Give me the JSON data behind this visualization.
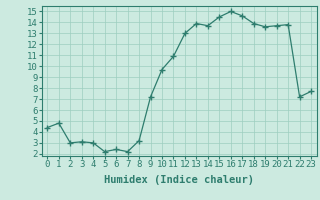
{
  "x": [
    0,
    1,
    2,
    3,
    4,
    5,
    6,
    7,
    8,
    9,
    10,
    11,
    12,
    13,
    14,
    15,
    16,
    17,
    18,
    19,
    20,
    21,
    22,
    23
  ],
  "y": [
    4.4,
    4.8,
    3.0,
    3.1,
    3.0,
    2.2,
    2.4,
    2.2,
    3.2,
    7.2,
    9.7,
    10.9,
    13.0,
    13.9,
    13.7,
    14.5,
    15.0,
    14.6,
    13.9,
    13.6,
    13.7,
    13.8,
    7.2,
    7.7
  ],
  "line_color": "#2e7d6e",
  "marker": "+",
  "marker_size": 4,
  "xlabel": "Humidex (Indice chaleur)",
  "xlim": [
    -0.5,
    23.5
  ],
  "ylim": [
    1.8,
    15.5
  ],
  "yticks": [
    2,
    3,
    4,
    5,
    6,
    7,
    8,
    9,
    10,
    11,
    12,
    13,
    14,
    15
  ],
  "xticks": [
    0,
    1,
    2,
    3,
    4,
    5,
    6,
    7,
    8,
    9,
    10,
    11,
    12,
    13,
    14,
    15,
    16,
    17,
    18,
    19,
    20,
    21,
    22,
    23
  ],
  "bg_color": "#cceae0",
  "grid_color": "#9ecec0",
  "text_color": "#2e7d6e",
  "font_size": 6.5,
  "xlabel_fontsize": 7.5
}
